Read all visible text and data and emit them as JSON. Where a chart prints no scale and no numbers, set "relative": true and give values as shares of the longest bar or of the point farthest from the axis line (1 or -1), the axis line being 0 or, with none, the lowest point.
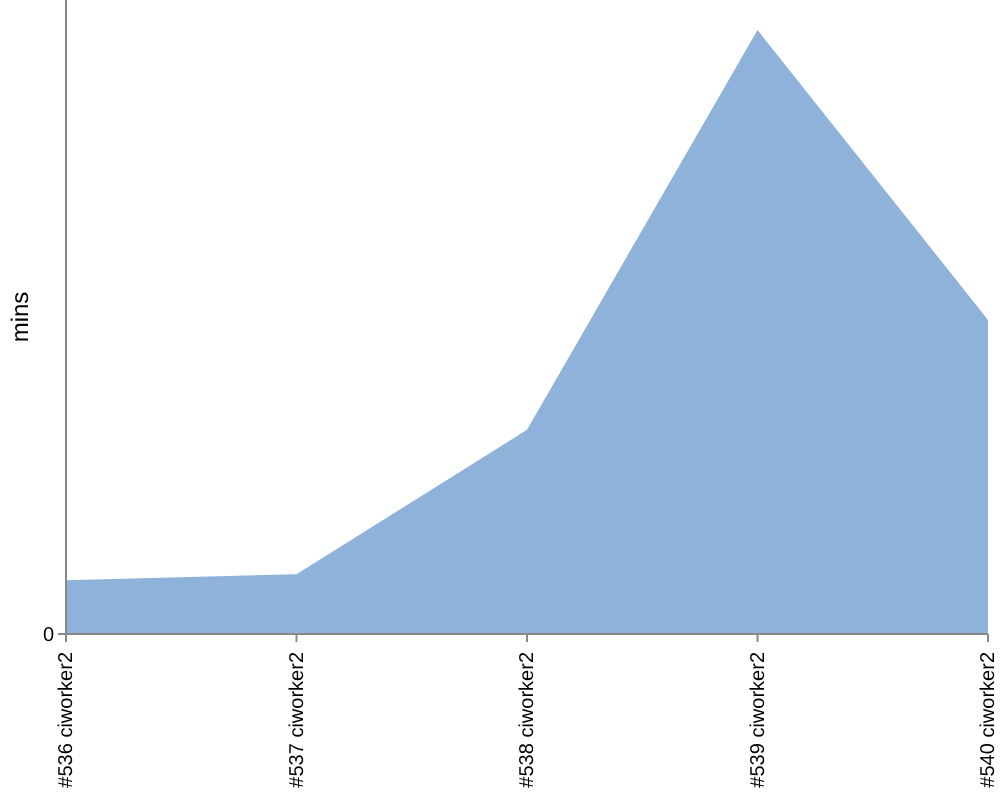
{
  "chart_data": {
    "type": "area",
    "ylabel": "mins",
    "relative": true,
    "annotations": [
      "0"
    ],
    "categories": [
      "#536 ciworker2",
      "#537 ciworker2",
      "#538 ciworker2",
      "#539 ciworker2",
      "#540 ciworker2"
    ],
    "series": [
      {
        "color": "#8fb2da",
        "values": [
          0.089,
          0.099,
          0.338,
          1,
          0.52
        ]
      }
    ]
  }
}
